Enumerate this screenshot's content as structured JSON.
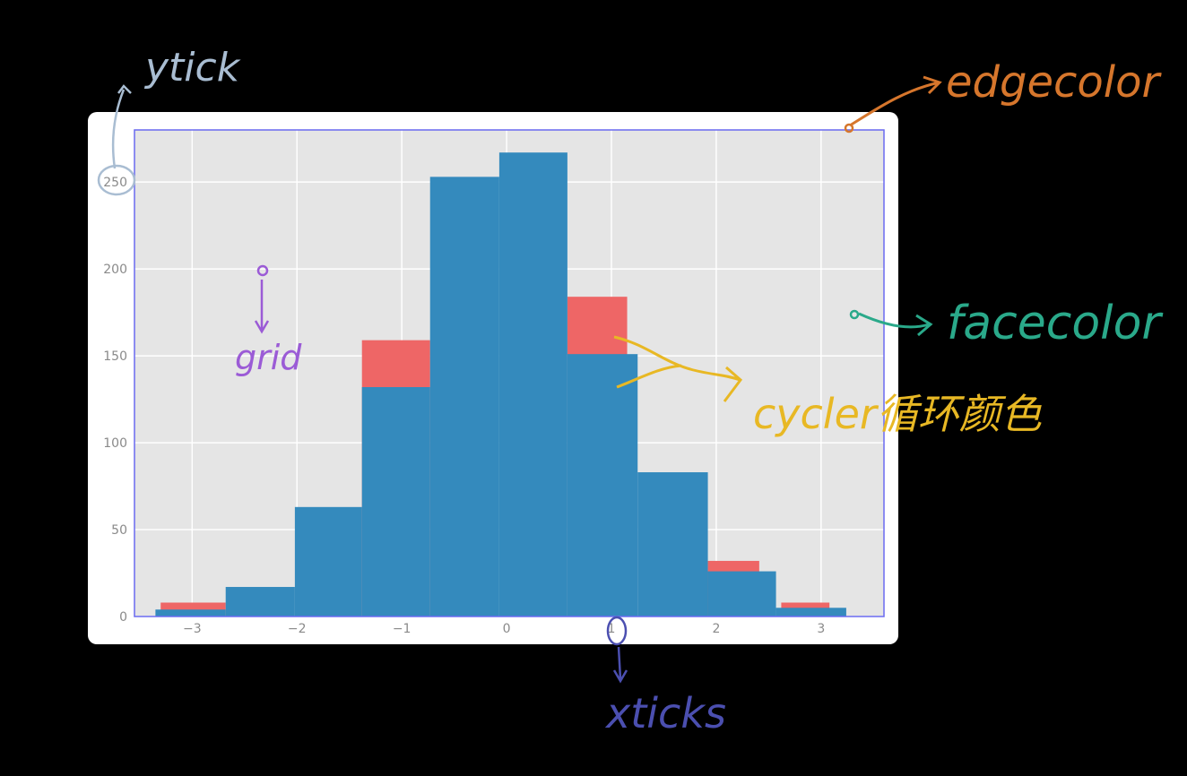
{
  "chart_data": {
    "type": "bar",
    "title": "",
    "xlabel": "",
    "ylabel": "",
    "xlim": [
      -3.55,
      3.6
    ],
    "ylim": [
      0,
      280
    ],
    "grid": true,
    "facecolor": "#e5e5e5",
    "edgecolor": "#6a6af0",
    "xticks": [
      -3,
      -2,
      -1,
      0,
      1,
      2,
      3
    ],
    "yticks": [
      0,
      50,
      100,
      150,
      200,
      250
    ],
    "xtick_labels": [
      "−3",
      "−2",
      "−1",
      "0",
      "1",
      "2",
      "3"
    ],
    "ytick_labels": [
      "0",
      "50",
      "100",
      "150",
      "200",
      "250"
    ],
    "series": [
      {
        "color": "#ee6666",
        "bins": [
          {
            "x0": -3.3,
            "x1": -2.68,
            "value": 8
          },
          {
            "x0": -1.38,
            "x1": -0.73,
            "value": 159
          },
          {
            "x0": 0.58,
            "x1": 1.15,
            "value": 184
          },
          {
            "x0": 1.92,
            "x1": 2.41,
            "value": 32
          },
          {
            "x0": 2.62,
            "x1": 3.08,
            "value": 8
          }
        ]
      },
      {
        "color": "#348abd",
        "bins": [
          {
            "x0": -3.35,
            "x1": -2.68,
            "value": 4
          },
          {
            "x0": -2.68,
            "x1": -2.02,
            "value": 17
          },
          {
            "x0": -2.02,
            "x1": -1.38,
            "value": 63
          },
          {
            "x0": -1.38,
            "x1": -0.73,
            "value": 132
          },
          {
            "x0": -0.73,
            "x1": -0.07,
            "value": 253
          },
          {
            "x0": -0.07,
            "x1": 0.58,
            "value": 267
          },
          {
            "x0": 0.58,
            "x1": 1.25,
            "value": 151
          },
          {
            "x0": 1.25,
            "x1": 1.92,
            "value": 83
          },
          {
            "x0": 1.92,
            "x1": 2.57,
            "value": 26
          },
          {
            "x0": 2.57,
            "x1": 3.24,
            "value": 5
          }
        ]
      }
    ]
  },
  "annotations": {
    "yticks": {
      "text": "ytick",
      "color": "#a9bdd2"
    },
    "edgecolor": {
      "text": "edgecolor",
      "color": "#d6762c"
    },
    "facecolor": {
      "text": "facecolor",
      "color": "#2aa98a"
    },
    "grid": {
      "text": "grid",
      "color": "#9b5bd6"
    },
    "cycler": {
      "text": "cycler循环颜色",
      "color": "#e8b824"
    },
    "xticks": {
      "text": "xticks",
      "color": "#4b4fb0"
    }
  }
}
